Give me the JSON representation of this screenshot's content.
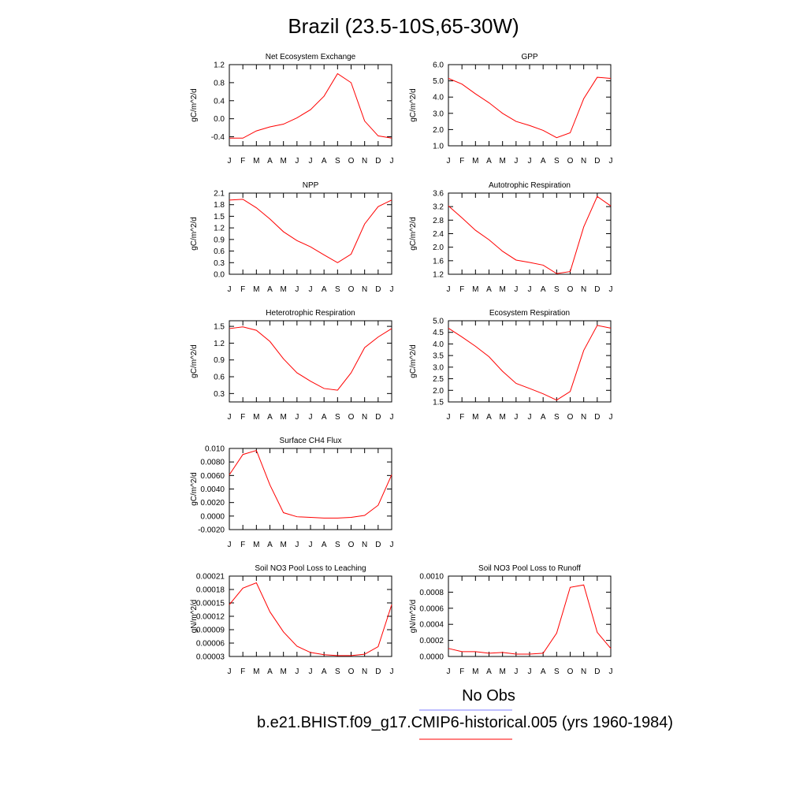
{
  "page_title": "Brazil (23.5-10S,65-30W)",
  "legend": {
    "obs_label": "No Obs",
    "obs_color": "#7f7fff",
    "model_label": "b.e21.BHIST.f09_g17.CMIP6-historical.005 (yrs 1960-1984)",
    "model_color": "#ff0000"
  },
  "chart_data": [
    {
      "type": "line",
      "title": "Net Ecosystem Exchange",
      "ylabel": "gC/m^2/d",
      "x": [
        "J",
        "F",
        "M",
        "A",
        "M",
        "J",
        "J",
        "A",
        "S",
        "O",
        "N",
        "D",
        "J"
      ],
      "ylim": [
        -0.6,
        1.2
      ],
      "yticks": [
        "-0.4",
        "0.0",
        "0.4",
        "0.8",
        "1.2"
      ],
      "series": [
        {
          "values": [
            -0.43,
            -0.43,
            -0.27,
            -0.18,
            -0.12,
            0.02,
            0.2,
            0.5,
            1.0,
            0.8,
            -0.05,
            -0.38,
            -0.43
          ]
        }
      ]
    },
    {
      "type": "line",
      "title": "GPP",
      "ylabel": "gC/m^2/d",
      "x": [
        "J",
        "F",
        "M",
        "A",
        "M",
        "J",
        "J",
        "A",
        "S",
        "O",
        "N",
        "D",
        "J"
      ],
      "ylim": [
        1.0,
        6.0
      ],
      "yticks": [
        "1.0",
        "2.0",
        "3.0",
        "4.0",
        "5.0",
        "6.0"
      ],
      "series": [
        {
          "values": [
            5.15,
            4.8,
            4.2,
            3.65,
            3.0,
            2.5,
            2.25,
            1.95,
            1.5,
            1.8,
            3.9,
            5.22,
            5.15
          ]
        }
      ]
    },
    {
      "type": "line",
      "title": "NPP",
      "ylabel": "gC/m^2/d",
      "x": [
        "J",
        "F",
        "M",
        "A",
        "M",
        "J",
        "J",
        "A",
        "S",
        "O",
        "N",
        "D",
        "J"
      ],
      "ylim": [
        0.0,
        2.1
      ],
      "yticks": [
        "0.0",
        "0.3",
        "0.6",
        "0.9",
        "1.2",
        "1.5",
        "1.8",
        "2.1"
      ],
      "series": [
        {
          "values": [
            1.92,
            1.94,
            1.72,
            1.43,
            1.1,
            0.87,
            0.71,
            0.5,
            0.3,
            0.52,
            1.3,
            1.75,
            1.92
          ]
        }
      ]
    },
    {
      "type": "line",
      "title": "Autotrophic Respiration",
      "ylabel": "gC/m^2/d",
      "x": [
        "J",
        "F",
        "M",
        "A",
        "M",
        "J",
        "J",
        "A",
        "S",
        "O",
        "N",
        "D",
        "J"
      ],
      "ylim": [
        1.2,
        3.6
      ],
      "yticks": [
        "1.2",
        "1.6",
        "2.0",
        "2.4",
        "2.8",
        "3.2",
        "3.6"
      ],
      "series": [
        {
          "values": [
            3.22,
            2.87,
            2.5,
            2.22,
            1.88,
            1.62,
            1.55,
            1.47,
            1.22,
            1.28,
            2.6,
            3.5,
            3.22
          ]
        }
      ]
    },
    {
      "type": "line",
      "title": "Heterotrophic Respiration",
      "ylabel": "gC/m^2/d",
      "x": [
        "J",
        "F",
        "M",
        "A",
        "M",
        "J",
        "J",
        "A",
        "S",
        "O",
        "N",
        "D",
        "J"
      ],
      "ylim": [
        0.15,
        1.6
      ],
      "yticks": [
        "0.3",
        "0.6",
        "0.9",
        "1.2",
        "1.5"
      ],
      "series": [
        {
          "values": [
            1.46,
            1.49,
            1.43,
            1.23,
            0.92,
            0.67,
            0.52,
            0.39,
            0.36,
            0.67,
            1.12,
            1.31,
            1.46
          ]
        }
      ]
    },
    {
      "type": "line",
      "title": "Ecosystem Respiration",
      "ylabel": "gC/m^2/d",
      "x": [
        "J",
        "F",
        "M",
        "A",
        "M",
        "J",
        "J",
        "A",
        "S",
        "O",
        "N",
        "D",
        "J"
      ],
      "ylim": [
        1.5,
        5.0
      ],
      "yticks": [
        "1.5",
        "2.0",
        "2.5",
        "3.0",
        "3.5",
        "4.0",
        "4.5",
        "5.0"
      ],
      "series": [
        {
          "values": [
            4.68,
            4.3,
            3.9,
            3.45,
            2.82,
            2.3,
            2.08,
            1.85,
            1.58,
            1.95,
            3.72,
            4.8,
            4.68
          ]
        }
      ]
    },
    {
      "type": "line",
      "title": "Surface CH4 Flux",
      "ylabel": "gC/m^2/d",
      "x": [
        "J",
        "F",
        "M",
        "A",
        "M",
        "J",
        "J",
        "A",
        "S",
        "O",
        "N",
        "D",
        "J"
      ],
      "ylim": [
        -0.002,
        0.01
      ],
      "yticks": [
        "-0.0020",
        "0.0000",
        "0.0020",
        "0.0040",
        "0.0060",
        "0.0080",
        "0.010"
      ],
      "series": [
        {
          "values": [
            0.0061,
            0.0091,
            0.0097,
            0.0046,
            0.0005,
            -0.0001,
            -0.0002,
            -0.0003,
            -0.0003,
            -0.0002,
            0.0001,
            0.0016,
            0.0061
          ]
        }
      ]
    },
    {
      "type": "line",
      "title": "Soil NO3 Pool Loss to Leaching",
      "ylabel": "gN/m^2/d",
      "x": [
        "J",
        "F",
        "M",
        "A",
        "M",
        "J",
        "J",
        "A",
        "S",
        "O",
        "N",
        "D",
        "J"
      ],
      "ylim": [
        3e-05,
        0.00021
      ],
      "yticks": [
        "0.00003",
        "0.00006",
        "0.00009",
        "0.00012",
        "0.00015",
        "0.00018",
        "0.00021"
      ],
      "series": [
        {
          "values": [
            0.000146,
            0.000183,
            0.000195,
            0.00013,
            8.5e-05,
            5.3e-05,
            3.9e-05,
            3.4e-05,
            3.2e-05,
            3.2e-05,
            3.5e-05,
            5.2e-05,
            0.000146
          ]
        }
      ]
    },
    {
      "type": "line",
      "title": "Soil NO3 Pool Loss to Runoff",
      "ylabel": "gN/m^2/d",
      "x": [
        "J",
        "F",
        "M",
        "A",
        "M",
        "J",
        "J",
        "A",
        "S",
        "O",
        "N",
        "D",
        "J"
      ],
      "ylim": [
        0.0,
        0.001
      ],
      "yticks": [
        "0.0000",
        "0.0002",
        "0.0004",
        "0.0006",
        "0.0008",
        "0.0010"
      ],
      "series": [
        {
          "values": [
            0.0001,
            6e-05,
            6e-05,
            4e-05,
            5e-05,
            3e-05,
            3e-05,
            4e-05,
            0.00029,
            0.00086,
            0.00089,
            0.0003,
            0.0001
          ]
        }
      ]
    }
  ]
}
